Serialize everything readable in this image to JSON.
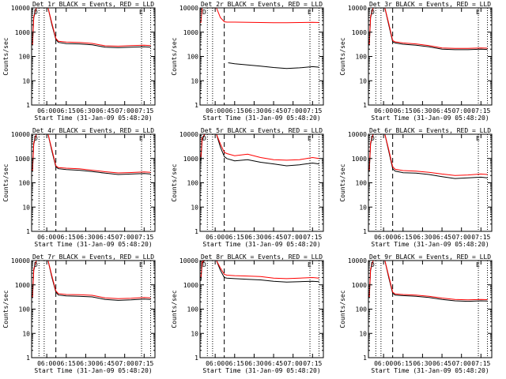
{
  "page": {
    "x_tick_labels": [
      "06:00",
      "06:15",
      "06:30",
      "06:45",
      "07:00",
      "07:15"
    ],
    "x_tick_minutes": [
      0,
      15,
      30,
      45,
      60,
      75
    ],
    "y_tick_labels": [
      "1",
      "10",
      "100",
      "1000",
      "10000"
    ],
    "y_tick_values": [
      1,
      10,
      100,
      1000,
      10000
    ],
    "colors": {
      "events": "#000000",
      "lld": "#ff0000",
      "axis": "#000000"
    }
  },
  "chart_data": [
    {
      "type": "line",
      "title": "Det 1r BLACK = Events, RED = LLD",
      "xlabel": "Start Time (31-Jan-09 05:48:20)",
      "ylabel": "Counts/sec",
      "scale": "log",
      "xlim": [
        "05:48:20",
        "07:23:20"
      ],
      "ylim": [
        1,
        10000
      ],
      "grid": false,
      "dotted_lines": [
        "05:54",
        "05:58",
        "07:13",
        "07:20"
      ],
      "dashed_lines": [
        "06:07"
      ],
      "corner_labels": [
        "D",
        "E"
      ],
      "series": [
        {
          "x": [
            "05:48",
            "05:49",
            "05:50",
            "05:52",
            "05:55",
            "05:58",
            "06:01",
            "06:04",
            "06:07",
            "06:09",
            "06:15",
            "06:25",
            "06:35",
            "06:45",
            "06:55",
            "07:05",
            "07:15",
            "07:20"
          ],
          "values": [
            300,
            300,
            4000,
            10000,
            10000,
            10000,
            10000,
            2000,
            500,
            380,
            340,
            330,
            300,
            240,
            230,
            240,
            250,
            240
          ]
        },
        {
          "x": [
            "05:48",
            "05:49",
            "05:50",
            "05:52",
            "05:55",
            "05:58",
            "06:01",
            "06:04",
            "06:07",
            "06:09",
            "06:15",
            "06:25",
            "06:35",
            "06:45",
            "06:55",
            "07:05",
            "07:15",
            "07:20"
          ],
          "values": [
            320,
            320,
            4500,
            10000,
            10000,
            10000,
            10000,
            2300,
            550,
            420,
            390,
            380,
            345,
            275,
            265,
            280,
            290,
            280
          ]
        }
      ]
    },
    {
      "type": "line",
      "title": "Det 2r BLACK = Events, RED = LLD",
      "xlabel": "Start Time (31-Jan-09 05:48:20)",
      "ylabel": "Counts/sec",
      "scale": "log",
      "xlim": [
        "05:48:20",
        "07:23:20"
      ],
      "ylim": [
        1,
        10000
      ],
      "grid": false,
      "dotted_lines": [
        "05:54",
        "05:58",
        "07:13",
        "07:20"
      ],
      "dashed_lines": [
        "06:07"
      ],
      "corner_labels": [
        "D",
        "E"
      ],
      "series": [
        {
          "x": [
            "06:10",
            "06:15",
            "06:25",
            "06:35",
            "06:45",
            "06:55",
            "07:05",
            "07:15",
            "07:20"
          ],
          "values": [
            55,
            50,
            45,
            40,
            35,
            32,
            34,
            38,
            36
          ]
        },
        {
          "x": [
            "05:48",
            "05:49",
            "05:50",
            "05:52",
            "05:55",
            "05:58",
            "06:01",
            "06:04",
            "06:07",
            "06:09",
            "06:15",
            "06:25",
            "06:35",
            "06:45",
            "06:55",
            "07:05",
            "07:15",
            "07:20"
          ],
          "values": [
            2500,
            2500,
            10000,
            10000,
            10000,
            10000,
            10000,
            4000,
            2700,
            2600,
            2600,
            2550,
            2500,
            2450,
            2450,
            2500,
            2550,
            2500
          ]
        }
      ]
    },
    {
      "type": "line",
      "title": "Det 3r BLACK = Events, RED = LLD",
      "xlabel": "Start Time (31-Jan-09 05:48:20)",
      "ylabel": "Counts/sec",
      "scale": "log",
      "xlim": [
        "05:48:20",
        "07:23:20"
      ],
      "ylim": [
        1,
        10000
      ],
      "grid": false,
      "dotted_lines": [
        "05:54",
        "05:58",
        "07:13",
        "07:20"
      ],
      "dashed_lines": [
        "06:07"
      ],
      "corner_labels": [
        "D",
        "E"
      ],
      "series": [
        {
          "x": [
            "05:48",
            "05:49",
            "05:50",
            "05:52",
            "05:55",
            "05:58",
            "06:01",
            "06:04",
            "06:07",
            "06:09",
            "06:15",
            "06:25",
            "06:35",
            "06:45",
            "06:55",
            "07:05",
            "07:15",
            "07:20"
          ],
          "values": [
            300,
            300,
            4000,
            10000,
            10000,
            10000,
            10000,
            2000,
            400,
            360,
            320,
            290,
            250,
            200,
            190,
            190,
            200,
            195
          ]
        },
        {
          "x": [
            "05:48",
            "05:49",
            "05:50",
            "05:52",
            "05:55",
            "05:58",
            "06:01",
            "06:04",
            "06:07",
            "06:09",
            "06:15",
            "06:25",
            "06:35",
            "06:45",
            "06:55",
            "07:05",
            "07:15",
            "07:20"
          ],
          "values": [
            330,
            330,
            4500,
            10000,
            10000,
            10000,
            10000,
            2300,
            450,
            400,
            360,
            330,
            280,
            225,
            215,
            215,
            225,
            220
          ]
        }
      ]
    },
    {
      "type": "line",
      "title": "Det 4r BLACK = Events, RED = LLD",
      "xlabel": "Start Time (31-Jan-09 05:48:20)",
      "ylabel": "Counts/sec",
      "scale": "log",
      "xlim": [
        "05:48:20",
        "07:23:20"
      ],
      "ylim": [
        1,
        10000
      ],
      "grid": false,
      "dotted_lines": [
        "05:54",
        "05:58",
        "07:13",
        "07:20"
      ],
      "dashed_lines": [
        "06:07"
      ],
      "corner_labels": [
        "D",
        "E"
      ],
      "series": [
        {
          "x": [
            "05:48",
            "05:49",
            "05:50",
            "05:52",
            "05:55",
            "05:58",
            "06:01",
            "06:04",
            "06:07",
            "06:09",
            "06:15",
            "06:25",
            "06:35",
            "06:45",
            "06:55",
            "07:05",
            "07:15",
            "07:20"
          ],
          "values": [
            300,
            300,
            4000,
            10000,
            10000,
            10000,
            10000,
            2000,
            450,
            380,
            350,
            330,
            290,
            250,
            220,
            230,
            240,
            230
          ]
        },
        {
          "x": [
            "05:48",
            "05:49",
            "05:50",
            "05:52",
            "05:55",
            "05:58",
            "06:01",
            "06:04",
            "06:07",
            "06:09",
            "06:15",
            "06:25",
            "06:35",
            "06:45",
            "06:55",
            "07:05",
            "07:15",
            "07:20"
          ],
          "values": [
            330,
            330,
            4500,
            10000,
            10000,
            10000,
            10000,
            2300,
            500,
            420,
            400,
            380,
            330,
            285,
            255,
            265,
            280,
            270
          ]
        }
      ]
    },
    {
      "type": "line",
      "title": "Det 5r BLACK = Events, RED = LLD",
      "xlabel": "Start Time (31-Jan-09 05:48:20)",
      "ylabel": "Counts/sec",
      "scale": "log",
      "xlim": [
        "05:48:20",
        "07:23:20"
      ],
      "ylim": [
        1,
        10000
      ],
      "grid": false,
      "dotted_lines": [
        "05:54",
        "05:58",
        "07:13",
        "07:20"
      ],
      "dashed_lines": [
        "06:07"
      ],
      "corner_labels": [
        "D",
        "E"
      ],
      "series": [
        {
          "x": [
            "05:48",
            "05:49",
            "05:50",
            "05:52",
            "05:55",
            "05:58",
            "06:01",
            "06:04",
            "06:07",
            "06:09",
            "06:15",
            "06:25",
            "06:35",
            "06:45",
            "06:55",
            "07:05",
            "07:15",
            "07:20"
          ],
          "values": [
            900,
            900,
            6000,
            10000,
            10000,
            10000,
            10000,
            3000,
            1200,
            1000,
            800,
            900,
            700,
            600,
            500,
            550,
            650,
            600
          ]
        },
        {
          "x": [
            "05:48",
            "05:49",
            "05:50",
            "05:52",
            "05:55",
            "05:58",
            "06:01",
            "06:04",
            "06:07",
            "06:09",
            "06:15",
            "06:25",
            "06:35",
            "06:45",
            "06:55",
            "07:05",
            "07:15",
            "07:20"
          ],
          "values": [
            1200,
            1200,
            7000,
            10000,
            10000,
            10000,
            10000,
            4000,
            1800,
            1600,
            1300,
            1500,
            1100,
            900,
            850,
            900,
            1100,
            1000
          ]
        }
      ]
    },
    {
      "type": "line",
      "title": "Det 6r BLACK = Events, RED = LLD",
      "xlabel": "Start Time (31-Jan-09 05:48:20)",
      "ylabel": "Counts/sec",
      "scale": "log",
      "xlim": [
        "05:48:20",
        "07:23:20"
      ],
      "ylim": [
        1,
        10000
      ],
      "grid": false,
      "dotted_lines": [
        "05:54",
        "05:58",
        "07:13",
        "07:20"
      ],
      "dashed_lines": [
        "06:07"
      ],
      "corner_labels": [
        "D",
        "E"
      ],
      "series": [
        {
          "x": [
            "05:48",
            "05:49",
            "05:50",
            "05:52",
            "05:55",
            "05:58",
            "06:01",
            "06:04",
            "06:07",
            "06:09",
            "06:15",
            "06:25",
            "06:35",
            "06:45",
            "06:55",
            "07:05",
            "07:15",
            "07:20"
          ],
          "values": [
            300,
            300,
            4000,
            10000,
            10000,
            10000,
            10000,
            2000,
            380,
            300,
            260,
            250,
            220,
            180,
            150,
            160,
            170,
            160
          ]
        },
        {
          "x": [
            "05:48",
            "05:49",
            "05:50",
            "05:52",
            "05:55",
            "05:58",
            "06:01",
            "06:04",
            "06:07",
            "06:09",
            "06:15",
            "06:25",
            "06:35",
            "06:45",
            "06:55",
            "07:05",
            "07:15",
            "07:20"
          ],
          "values": [
            350,
            350,
            4500,
            10000,
            10000,
            10000,
            10000,
            2300,
            450,
            360,
            320,
            300,
            270,
            230,
            200,
            210,
            230,
            220
          ]
        }
      ]
    },
    {
      "type": "line",
      "title": "Det 7r BLACK = Events, RED = LLD",
      "xlabel": "Start Time (31-Jan-09 05:48:20)",
      "ylabel": "Counts/sec",
      "scale": "log",
      "xlim": [
        "05:48:20",
        "07:23:20"
      ],
      "ylim": [
        1,
        10000
      ],
      "grid": false,
      "dotted_lines": [
        "05:54",
        "05:58",
        "07:13",
        "07:20"
      ],
      "dashed_lines": [
        "06:07"
      ],
      "corner_labels": [
        "D",
        "E"
      ],
      "series": [
        {
          "x": [
            "05:48",
            "05:49",
            "05:50",
            "05:52",
            "05:55",
            "05:58",
            "06:01",
            "06:04",
            "06:07",
            "06:09",
            "06:15",
            "06:25",
            "06:35",
            "06:45",
            "06:55",
            "07:05",
            "07:15",
            "07:20"
          ],
          "values": [
            300,
            300,
            4000,
            10000,
            10000,
            10000,
            10000,
            2000,
            500,
            380,
            350,
            340,
            320,
            250,
            230,
            240,
            260,
            250
          ]
        },
        {
          "x": [
            "05:48",
            "05:49",
            "05:50",
            "05:52",
            "05:55",
            "05:58",
            "06:01",
            "06:04",
            "06:07",
            "06:09",
            "06:15",
            "06:25",
            "06:35",
            "06:45",
            "06:55",
            "07:05",
            "07:15",
            "07:20"
          ],
          "values": [
            330,
            330,
            4500,
            10000,
            10000,
            10000,
            10000,
            2300,
            560,
            430,
            400,
            390,
            370,
            290,
            270,
            280,
            300,
            290
          ]
        }
      ]
    },
    {
      "type": "line",
      "title": "Det 8r BLACK = Events, RED = LLD",
      "xlabel": "Start Time (31-Jan-09 05:48:20)",
      "ylabel": "Counts/sec",
      "scale": "log",
      "xlim": [
        "05:48:20",
        "07:23:20"
      ],
      "ylim": [
        1,
        10000
      ],
      "grid": false,
      "dotted_lines": [
        "05:54",
        "05:58",
        "07:13",
        "07:20"
      ],
      "dashed_lines": [
        "06:07"
      ],
      "corner_labels": [
        "D",
        "E"
      ],
      "series": [
        {
          "x": [
            "05:48",
            "05:49",
            "05:50",
            "05:52",
            "05:55",
            "05:58",
            "06:01",
            "06:04",
            "06:07",
            "06:09",
            "06:15",
            "06:25",
            "06:35",
            "06:45",
            "06:55",
            "07:05",
            "07:15",
            "07:20"
          ],
          "values": [
            1500,
            1500,
            8000,
            10000,
            10000,
            10000,
            10000,
            4000,
            2000,
            1900,
            1800,
            1700,
            1600,
            1400,
            1300,
            1350,
            1400,
            1350
          ]
        },
        {
          "x": [
            "05:48",
            "05:49",
            "05:50",
            "05:52",
            "05:55",
            "05:58",
            "06:01",
            "06:04",
            "06:07",
            "06:09",
            "06:15",
            "06:25",
            "06:35",
            "06:45",
            "06:55",
            "07:05",
            "07:15",
            "07:20"
          ],
          "values": [
            2000,
            2000,
            9000,
            10000,
            10000,
            10000,
            10000,
            5000,
            2700,
            2500,
            2400,
            2300,
            2200,
            1900,
            1800,
            1900,
            2000,
            1900
          ]
        }
      ]
    },
    {
      "type": "line",
      "title": "Det 9r BLACK = Events, RED = LLD",
      "xlabel": "Start Time (31-Jan-09 05:48:20)",
      "ylabel": "Counts/sec",
      "scale": "log",
      "xlim": [
        "05:48:20",
        "07:23:20"
      ],
      "ylim": [
        1,
        10000
      ],
      "grid": false,
      "dotted_lines": [
        "05:54",
        "05:58",
        "07:13",
        "07:20"
      ],
      "dashed_lines": [
        "06:07"
      ],
      "corner_labels": [
        "D",
        "E"
      ],
      "series": [
        {
          "x": [
            "05:48",
            "05:49",
            "05:50",
            "05:52",
            "05:55",
            "05:58",
            "06:01",
            "06:04",
            "06:07",
            "06:09",
            "06:15",
            "06:25",
            "06:35",
            "06:45",
            "06:55",
            "07:05",
            "07:15",
            "07:20"
          ],
          "values": [
            300,
            300,
            4000,
            10000,
            10000,
            10000,
            10000,
            2000,
            450,
            380,
            360,
            340,
            300,
            250,
            220,
            210,
            220,
            215
          ]
        },
        {
          "x": [
            "05:48",
            "05:49",
            "05:50",
            "05:52",
            "05:55",
            "05:58",
            "06:01",
            "06:04",
            "06:07",
            "06:09",
            "06:15",
            "06:25",
            "06:35",
            "06:45",
            "06:55",
            "07:05",
            "07:15",
            "07:20"
          ],
          "values": [
            330,
            330,
            4500,
            10000,
            10000,
            10000,
            10000,
            2300,
            500,
            420,
            400,
            380,
            340,
            285,
            250,
            240,
            250,
            245
          ]
        }
      ]
    }
  ]
}
